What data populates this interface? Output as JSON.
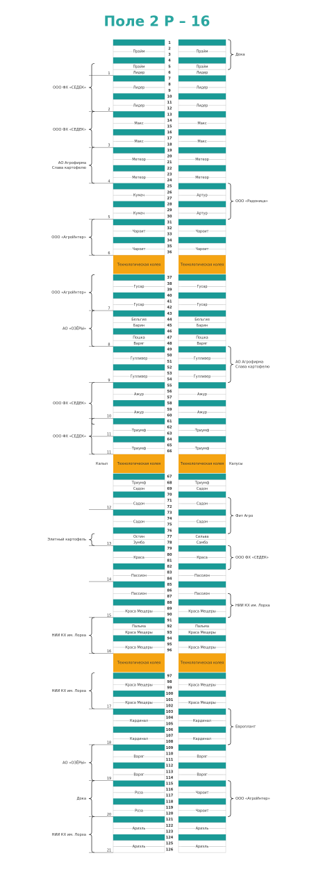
{
  "title": "Поле 2 Р – 16",
  "track_label": "Технологическая колея",
  "sections": [
    {
      "units": [
        {
          "rows": [
            1,
            2,
            3
          ],
          "left": [
            "Прайм"
          ],
          "right": [
            "Прайм"
          ]
        },
        {
          "rows": [
            4,
            5,
            6
          ],
          "left": [
            "Прайм",
            "Лидер"
          ],
          "right": [
            "Прайм",
            "Лидер"
          ],
          "mark": "1"
        },
        {
          "rows": [
            7,
            8,
            9
          ],
          "left": [
            "Лидер"
          ],
          "right": [
            "Лидер"
          ]
        },
        {
          "rows": [
            10,
            11,
            12
          ],
          "left": [
            "Лидер"
          ],
          "right": [
            "Лидер"
          ],
          "mark": "2"
        },
        {
          "rows": [
            13,
            14,
            15
          ],
          "left": [
            "Макс"
          ],
          "right": [
            "Макс"
          ]
        },
        {
          "rows": [
            16,
            17,
            18
          ],
          "left": [
            "Макс"
          ],
          "right": [
            "Макс"
          ],
          "mark": "3"
        },
        {
          "rows": [
            19,
            20,
            21
          ],
          "left": [
            "Метеор"
          ],
          "right": [
            "Метеор"
          ]
        },
        {
          "rows": [
            22,
            23,
            24
          ],
          "left": [
            "Метеор"
          ],
          "right": [
            "Метеор"
          ],
          "mark": "4"
        },
        {
          "rows": [
            25,
            26,
            27
          ],
          "left": [
            "Кумач"
          ],
          "right": [
            "Артур"
          ]
        },
        {
          "rows": [
            28,
            29,
            30
          ],
          "left": [
            "Кумач"
          ],
          "right": [
            "Артур"
          ],
          "mark": "5"
        },
        {
          "rows": [
            31,
            32,
            33
          ],
          "left": [
            "Чароит"
          ],
          "right": [
            "Чароит"
          ]
        },
        {
          "rows": [
            34,
            35,
            36
          ],
          "left": [
            "Чароит"
          ],
          "right": [
            "Чароит"
          ],
          "mark": "6"
        }
      ]
    },
    {
      "units": [
        {
          "rows": [
            37,
            38,
            39
          ],
          "left": [
            "Гусар"
          ],
          "right": [
            "Гусар"
          ]
        },
        {
          "rows": [
            40,
            41,
            42
          ],
          "left": [
            "Гусар"
          ],
          "right": [
            "Гусар"
          ],
          "mark": "7"
        },
        {
          "rows": [
            43,
            44,
            45
          ],
          "left": [
            "Бельгия",
            "Барин"
          ],
          "right": [
            "Бельгия",
            "Барин"
          ]
        },
        {
          "rows": [
            46,
            47,
            48
          ],
          "left": [
            "Пошка",
            "Варяг"
          ],
          "right": [
            "Пошка",
            "Варяг"
          ],
          "mark": "8"
        },
        {
          "rows": [
            49,
            50,
            51
          ],
          "left": [
            "Гулливер"
          ],
          "right": [
            "Гулливер"
          ]
        },
        {
          "rows": [
            52,
            53,
            54
          ],
          "left": [
            "Гулливер"
          ],
          "right": [
            "Гулливер"
          ],
          "mark": "9"
        },
        {
          "rows": [
            55,
            56,
            57
          ],
          "left": [
            "Ажур"
          ],
          "right": [
            "Ажур"
          ]
        },
        {
          "rows": [
            58,
            59,
            60
          ],
          "left": [
            "Ажур"
          ],
          "right": [
            "Ажур"
          ],
          "mark": "10"
        },
        {
          "rows": [
            61,
            62,
            63
          ],
          "left": [
            "Триумф"
          ],
          "right": [
            "Триумф"
          ],
          "mark": "11"
        },
        {
          "rows": [
            64,
            65,
            66
          ],
          "left": [
            "Триумф"
          ],
          "right": [
            "Триумф"
          ],
          "mark": "11"
        }
      ],
      "track_notes": {
        "left": "Калыл",
        "right": "Калусы"
      }
    },
    {
      "units": [
        {
          "rows": [
            67,
            68,
            69
          ],
          "left": [
            "Триумф",
            "Садон"
          ],
          "right": [
            "Триумф",
            "Садон"
          ]
        },
        {
          "rows": [
            70,
            71,
            72
          ],
          "left": [
            "Садон"
          ],
          "right": [
            "Садон"
          ],
          "mark": "12"
        },
        {
          "rows": [
            73,
            74,
            75
          ],
          "left": [
            "Садон"
          ],
          "right": [
            "Садон"
          ]
        },
        {
          "rows": [
            76,
            77,
            78
          ],
          "left": [
            "Остин",
            "Зумба"
          ],
          "right": [
            "Сильва",
            "Самба"
          ],
          "mark": "13"
        },
        {
          "rows": [
            79,
            80,
            81
          ],
          "left": [
            "Краса"
          ],
          "right": [
            "Краса"
          ]
        },
        {
          "rows": [
            82,
            83,
            84
          ],
          "left": [
            "Пассион"
          ],
          "right": [
            "Пассион"
          ],
          "mark": "14"
        },
        {
          "rows": [
            85,
            86,
            87
          ],
          "left": [
            "Пассион"
          ],
          "right": [
            "Пассион"
          ]
        },
        {
          "rows": [
            88,
            89,
            90
          ],
          "left": [
            "Краса Мещеры"
          ],
          "right": [
            "Краса Мещеры"
          ],
          "mark": "15"
        },
        {
          "rows": [
            91,
            92,
            93
          ],
          "left": [
            "Пальма",
            "Краса Мещеры"
          ],
          "right": [
            "Пальма",
            "Краса Мещеры"
          ]
        },
        {
          "rows": [
            94,
            95,
            96
          ],
          "left": [
            "Краса Мещеры"
          ],
          "right": [
            "Краса Мещеры"
          ],
          "mark": "16"
        }
      ]
    },
    {
      "units": [
        {
          "rows": [
            97,
            98,
            99
          ],
          "left": [
            "Краса Мещеры"
          ],
          "right": [
            "Краса Мещеры"
          ]
        },
        {
          "rows": [
            100,
            101,
            102
          ],
          "left": [
            "Краса Мещеры"
          ],
          "right": [
            "Краса Мещеры"
          ],
          "mark": "17"
        },
        {
          "rows": [
            103,
            104,
            105
          ],
          "left": [
            "Кардинал"
          ],
          "right": [
            "Кардинал"
          ]
        },
        {
          "rows": [
            106,
            107,
            108
          ],
          "left": [
            "Кардинал"
          ],
          "right": [
            "Кардинал"
          ],
          "mark": "18"
        },
        {
          "rows": [
            109,
            110,
            111
          ],
          "left": [
            "Варяг"
          ],
          "right": [
            "Варяг"
          ]
        },
        {
          "rows": [
            112,
            113,
            114
          ],
          "left": [
            "Варяг"
          ],
          "right": [
            "Варяг"
          ],
          "mark": "19"
        },
        {
          "rows": [
            115,
            116,
            117
          ],
          "left": [
            "Роза"
          ],
          "right": [
            "Чароит"
          ]
        },
        {
          "rows": [
            118,
            119,
            120
          ],
          "left": [
            "Роза"
          ],
          "right": [
            "Чароит"
          ],
          "mark": "20"
        },
        {
          "rows": [
            121,
            122,
            123
          ],
          "left": [
            "Ариэль"
          ],
          "right": [
            "Ариэль"
          ]
        },
        {
          "rows": [
            124,
            125,
            126
          ],
          "left": [
            "Ариэль"
          ],
          "right": [
            "Ариэль"
          ],
          "mark": "21"
        }
      ]
    }
  ],
  "left_groups": [
    {
      "label": [
        "ООО ФХ «СЕДЕК»"
      ],
      "rows": [
        5,
        12
      ]
    },
    {
      "label": [
        "ООО ФХ «СЕДЕК»"
      ],
      "rows": [
        13,
        18
      ]
    },
    {
      "label": [
        "АО Агрофирма",
        "Слава картофелю"
      ],
      "rows": [
        19,
        24
      ]
    },
    {
      "label": [
        "ООО «АгроИнтер»"
      ],
      "rows": [
        31,
        36
      ]
    },
    {
      "label": [
        "ООО «АгроИнтер»"
      ],
      "rows": [
        37,
        42
      ]
    },
    {
      "label": [
        "АО «ОЗЁРЫ»"
      ],
      "rows": [
        43,
        48
      ]
    },
    {
      "label": [
        "ООО ФХ «СЕДЕК»"
      ],
      "rows": [
        55,
        61
      ]
    },
    {
      "label": [
        "ООО ФХ «СЕДЕК»"
      ],
      "rows": [
        61,
        66
      ]
    },
    {
      "label": [
        "Элитный картофель"
      ],
      "rows": [
        77,
        78
      ]
    },
    {
      "label": [
        "НИИ КХ им. Лорха"
      ],
      "rows": [
        91,
        96
      ]
    },
    {
      "label": [
        "НИИ КХ им. Лорха"
      ],
      "rows": [
        97,
        102
      ]
    },
    {
      "label": [
        "АО «ОЗЁРЫ»"
      ],
      "rows": [
        109,
        114
      ]
    },
    {
      "label": [
        "Дока"
      ],
      "rows": [
        115,
        120
      ]
    },
    {
      "label": [
        "НИИ КХ им. Лорха"
      ],
      "rows": [
        121,
        126
      ]
    }
  ],
  "right_groups": [
    {
      "label": [
        "Дока"
      ],
      "rows": [
        1,
        5
      ]
    },
    {
      "label": [
        "ООО «Радоница»"
      ],
      "rows": [
        25,
        30
      ]
    },
    {
      "label": [
        "АО Агрофирма",
        "Слава картофелю"
      ],
      "rows": [
        49,
        54
      ]
    },
    {
      "label": [
        "Фит Агро"
      ],
      "rows": [
        71,
        76
      ]
    },
    {
      "label": [
        "ООО ФХ «СЕДЕК»"
      ],
      "rows": [
        79,
        82
      ]
    },
    {
      "label": [
        "НИИ КХ им. Лорха"
      ],
      "rows": [
        87,
        90
      ]
    },
    {
      "label": [
        "Европлант"
      ],
      "rows": [
        103,
        108
      ]
    },
    {
      "label": [
        "ООО «АгроИнтер»"
      ],
      "rows": [
        115,
        120
      ]
    }
  ]
}
